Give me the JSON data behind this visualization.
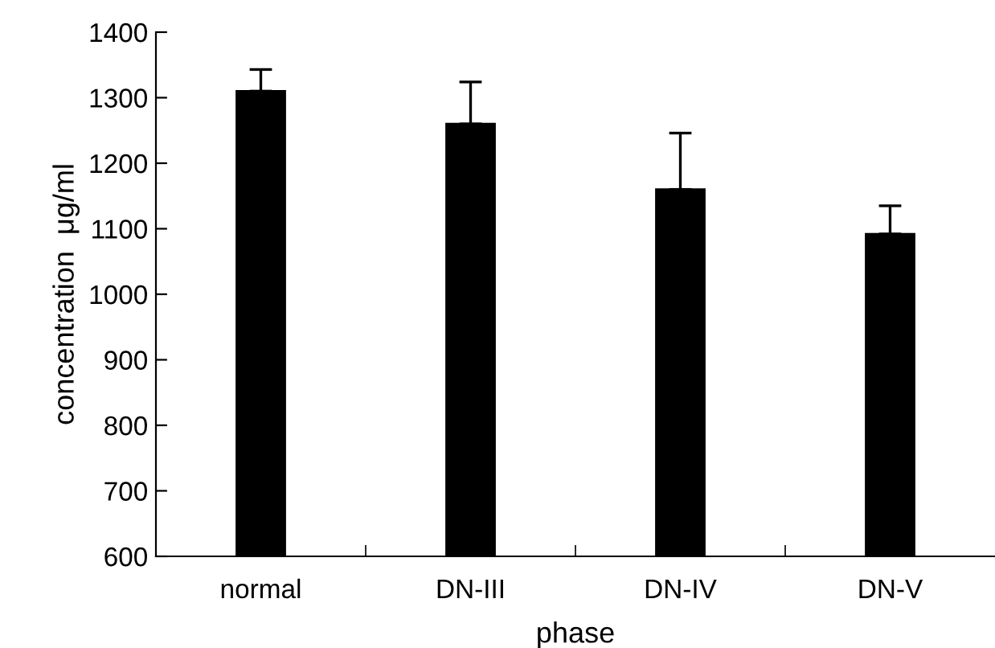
{
  "chart_data": {
    "type": "bar",
    "xlabel": "phase",
    "ylabel": "concentration  μg/ml",
    "categories": [
      "normal",
      "DN-III",
      "DN-IV",
      "DN-V"
    ],
    "values": [
      1310,
      1260,
      1160,
      1092
    ],
    "errors": [
      [
        1310,
        1343
      ],
      [
        1260,
        1324
      ],
      [
        1160,
        1246
      ],
      [
        1092,
        1135
      ]
    ],
    "color": "#000000",
    "ylim": [
      600,
      1400
    ],
    "yticks": [
      600,
      700,
      800,
      900,
      1000,
      1100,
      1200,
      1300,
      1400
    ],
    "grid": false,
    "legend": false
  }
}
